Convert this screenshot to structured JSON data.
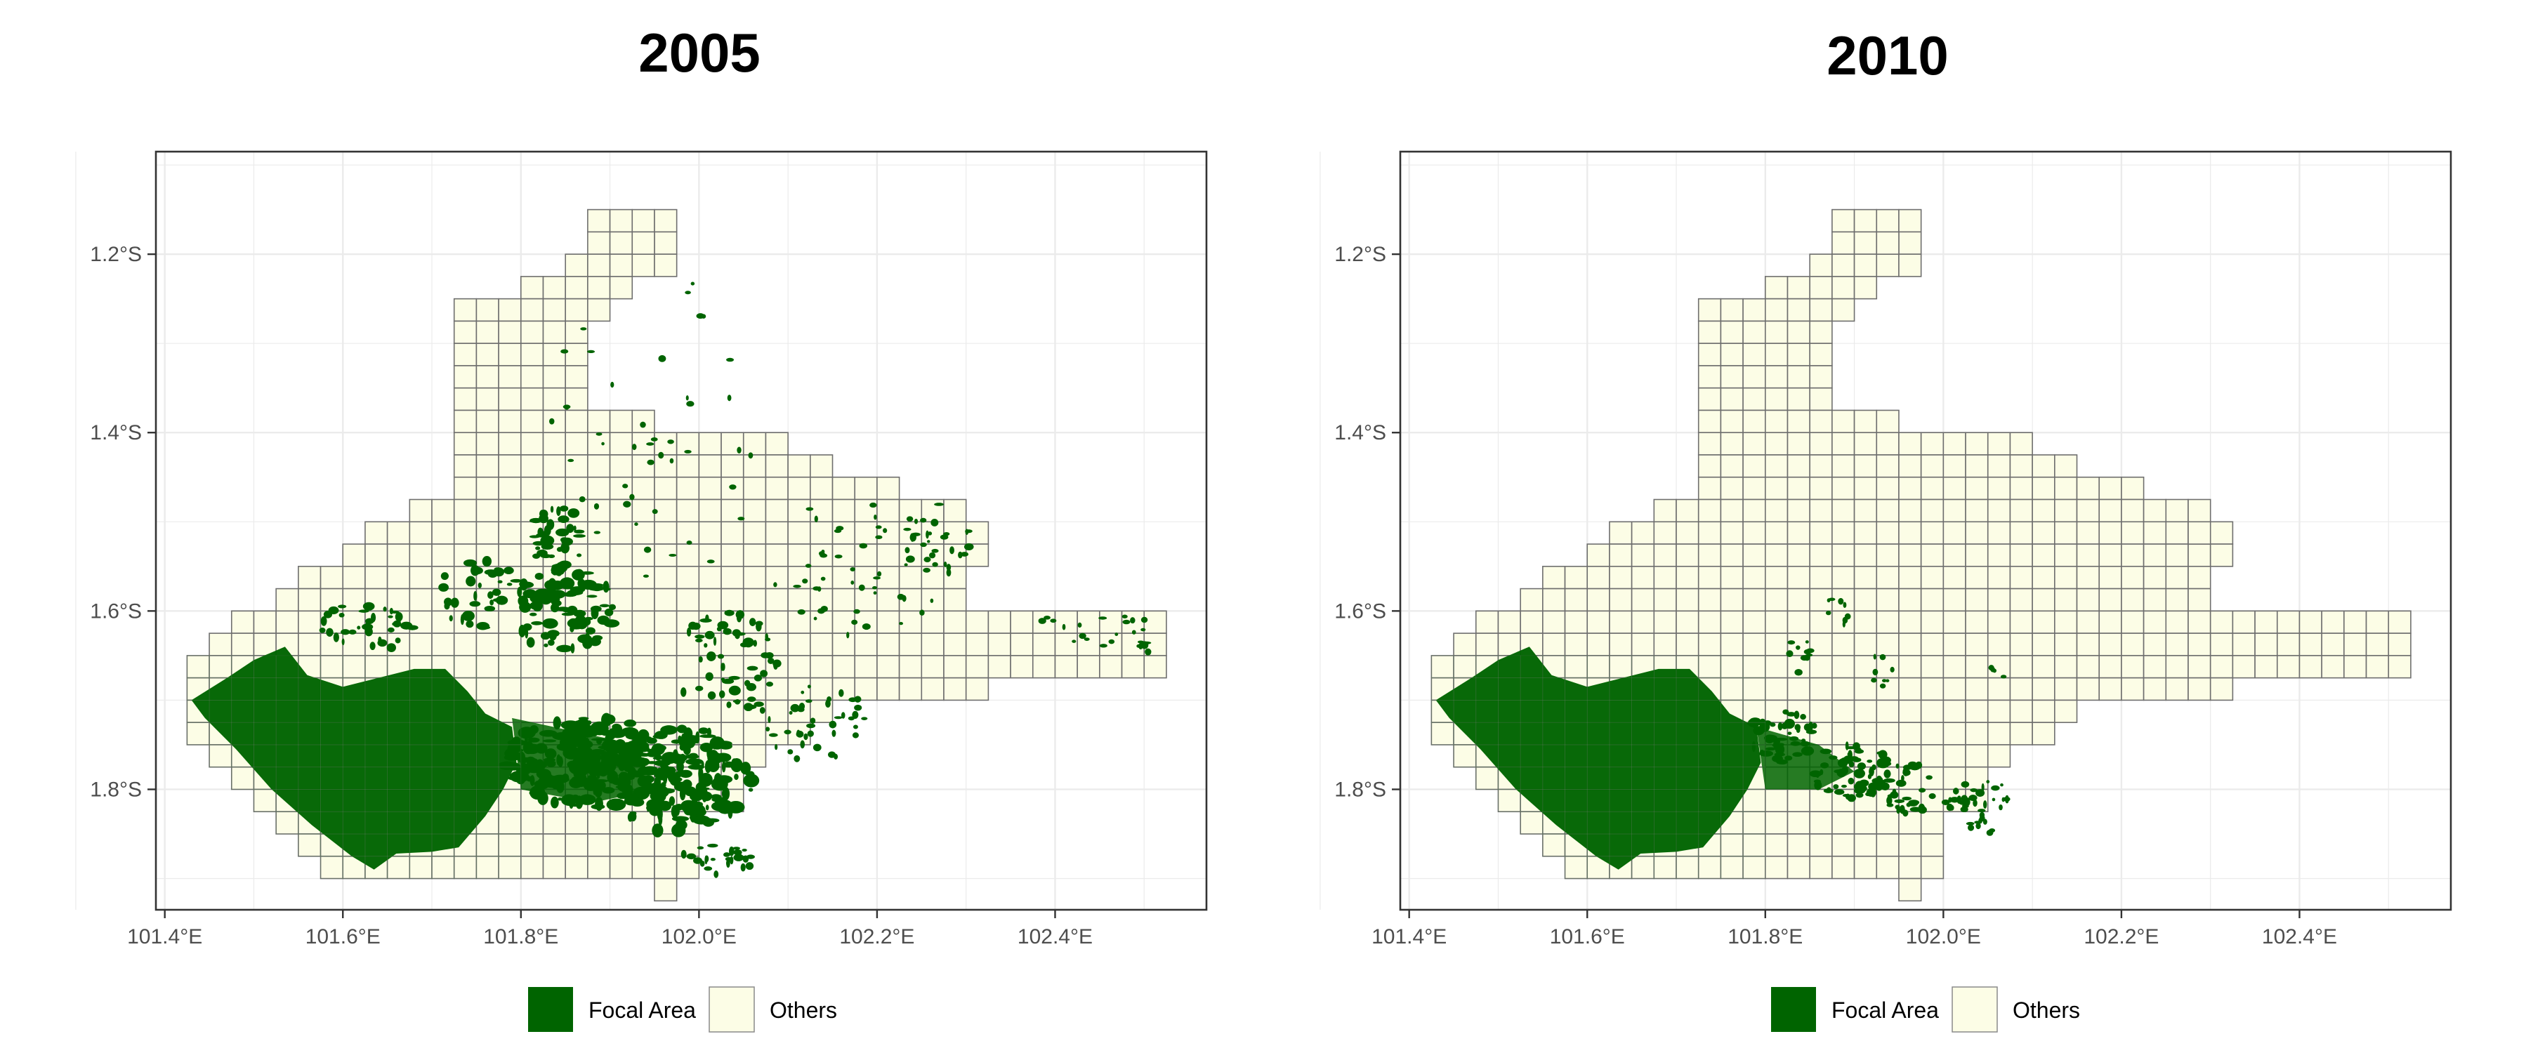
{
  "chart_data": [
    {
      "type": "map",
      "title": "2005",
      "xlabel": "",
      "ylabel": "",
      "xlim": [
        101.39,
        102.57
      ],
      "ylim": [
        -1.935,
        -1.085
      ],
      "x_ticks": [
        101.4,
        101.6,
        101.8,
        102.0,
        102.2,
        102.4
      ],
      "x_tick_labels": [
        "101.4°E",
        "101.6°E",
        "101.8°E",
        "102.0°E",
        "102.2°E",
        "102.4°E"
      ],
      "y_ticks": [
        -1.2,
        -1.4,
        -1.6,
        -1.8
      ],
      "y_tick_labels": [
        "1.2°S",
        "1.4°S",
        "1.6°S",
        "1.8°S"
      ],
      "grid": true,
      "colors": {
        "focal": "#006400",
        "others": "#fcfde6",
        "cell_border": "#6e6e6e"
      },
      "focal_extent": "large"
    },
    {
      "type": "map",
      "title": "2010",
      "xlabel": "",
      "ylabel": "",
      "xlim": [
        101.39,
        102.57
      ],
      "ylim": [
        -1.935,
        -1.085
      ],
      "x_ticks": [
        101.4,
        101.6,
        101.8,
        102.0,
        102.2,
        102.4
      ],
      "x_tick_labels": [
        "101.4°E",
        "101.6°E",
        "101.8°E",
        "102.0°E",
        "102.2°E",
        "102.4°E"
      ],
      "y_ticks": [
        -1.2,
        -1.4,
        -1.6,
        -1.8
      ],
      "y_tick_labels": [
        "1.2°S",
        "1.4°S",
        "1.6°S",
        "1.8°S"
      ],
      "grid": true,
      "colors": {
        "focal": "#006400",
        "others": "#fcfde6",
        "cell_border": "#6e6e6e"
      },
      "focal_extent": "small"
    }
  ],
  "legend": {
    "placement": "bottom",
    "entries": [
      {
        "label": "Focal Area",
        "color": "#006400"
      },
      {
        "label": "Others",
        "color": "#fcfde6"
      }
    ]
  }
}
